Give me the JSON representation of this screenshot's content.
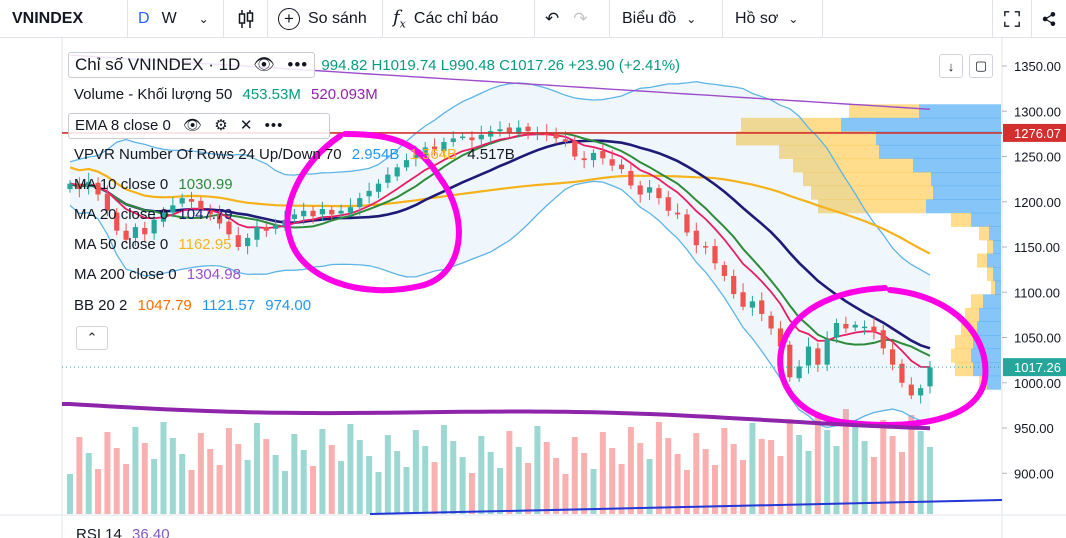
{
  "toolbar": {
    "symbol": "VNINDEX",
    "timeframe_daily": "D",
    "timeframe_weekly": "W",
    "compare_label": "So sánh",
    "indicators_label": "Các chỉ báo",
    "chart_type_label": "Biểu đồ",
    "profile_label": "Hồ sơ"
  },
  "legend": {
    "title": "Chỉ số VNINDEX · 1D",
    "ohlc": "994.82  H1019.74  L990.48  C1017.26  +23.90 (+2.41%)",
    "volume_name": "Volume - Khối lượng 50",
    "volume_v1": "453.53M",
    "volume_v2": "520.093M",
    "ema_name": "EMA 8 close 0",
    "vpvr_name": "VPVR Number Of Rows 24 Up/Down 70",
    "vpvr_v1": "2.954B",
    "vpvr_v2": "1.564B",
    "vpvr_v3": "4.517B",
    "ma10_name": "MA 10 close 0",
    "ma10_value": "1030.99",
    "ma20_name": "MA 20 close 0",
    "ma20_value": "1047.79",
    "ma50_name": "MA 50 close 0",
    "ma50_value": "1162.95",
    "ma200_name": "MA 200 close 0",
    "ma200_value": "1304.98",
    "bb_name": "BB 20 2",
    "bb_v1": "1047.79",
    "bb_v2": "1121.57",
    "bb_v3": "974.00",
    "rsi_name": "RSI 14",
    "rsi_value": "36.40"
  },
  "icons": [
    "chevron-down-icon",
    "candles-icon",
    "plus-circle-icon",
    "fx-icon",
    "undo-icon",
    "redo-icon",
    "fullscreen-icon",
    "share-icon",
    "eye-icon",
    "gear-icon",
    "close-icon",
    "more-icon",
    "chevron-up-icon",
    "arrow-down-icon",
    "scale-icon"
  ],
  "colors": {
    "up": "#26a69a",
    "down": "#ef5350",
    "ema8": "#e91e63",
    "ma10": "#2e8b3a",
    "ma20": "#1e1a78",
    "ma50": "#f5b21b",
    "ma200": "#9c4dcc",
    "bb_basis": "#ff6d00",
    "bb_band": "#5fb4e6",
    "vp_up": "#2196f3",
    "vp_down": "#ffb300",
    "annotation": "#ff00e6",
    "hline": "#d32f2f",
    "last_price_tag": "#26a69a"
  },
  "chart_data": {
    "type": "candlestick",
    "y_ticks": [
      1350,
      1300,
      1250,
      1200,
      1150,
      1100,
      1050,
      1000,
      950,
      900
    ],
    "ylim": [
      875,
      1365
    ],
    "last_price": 1017.26,
    "horizontal_line": 1276.07,
    "closes": [
      1220,
      1214,
      1222,
      1208,
      1190,
      1168,
      1158,
      1172,
      1164,
      1180,
      1188,
      1196,
      1204,
      1200,
      1192,
      1186,
      1176,
      1164,
      1150,
      1160,
      1172,
      1168,
      1174,
      1180,
      1186,
      1190,
      1184,
      1192,
      1186,
      1190,
      1194,
      1204,
      1212,
      1220,
      1230,
      1238,
      1246,
      1252,
      1260,
      1258,
      1266,
      1270,
      1272,
      1268,
      1274,
      1278,
      1280,
      1276,
      1282,
      1278,
      1276,
      1274,
      1270,
      1266,
      1250,
      1246,
      1254,
      1248,
      1240,
      1236,
      1218,
      1208,
      1216,
      1204,
      1190,
      1186,
      1166,
      1152,
      1150,
      1132,
      1118,
      1098,
      1084,
      1090,
      1076,
      1060,
      1040,
      1006,
      1018,
      1040,
      1020,
      1048,
      1066,
      1060,
      1064,
      1062,
      1056,
      1038,
      1020,
      1000,
      986,
      994,
      1017
    ]
  }
}
